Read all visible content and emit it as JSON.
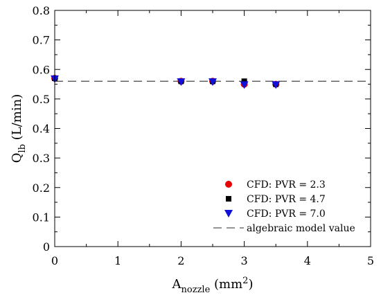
{
  "chart_data": {
    "type": "scatter",
    "xlim": [
      0,
      5
    ],
    "ylim": [
      0,
      0.8
    ],
    "x_ticks": [
      "0",
      "1",
      "2",
      "3",
      "4",
      "5"
    ],
    "y_ticks": [
      "0",
      "0.1",
      "0.2",
      "0.3",
      "0.4",
      "0.5",
      "0.6",
      "0.7",
      "0.8"
    ],
    "xlabel": {
      "main": "A",
      "sub": "nozzle",
      "unit_pre": " (mm",
      "unit_sup": "2",
      "unit_post": ")"
    },
    "ylabel": {
      "main": "Q",
      "sub": "lb",
      "unit": " (L/min)"
    },
    "legend_position": "bottom-right",
    "series": [
      {
        "name": "CFD: PVR = 2.3",
        "marker": "circle",
        "color": "#e60000",
        "points": [
          [
            0,
            0.57
          ],
          [
            2,
            0.56
          ],
          [
            2.5,
            0.56
          ],
          [
            3,
            0.55
          ],
          [
            3.5,
            0.55
          ]
        ]
      },
      {
        "name": "CFD: PVR = 4.7",
        "marker": "square",
        "color": "#000000",
        "points": [
          [
            0,
            0.57
          ],
          [
            2,
            0.56
          ],
          [
            2.5,
            0.56
          ],
          [
            3,
            0.56
          ],
          [
            3.5,
            0.55
          ]
        ]
      },
      {
        "name": "CFD: PVR = 7.0",
        "marker": "triangle-down",
        "color": "#1010d8",
        "points": [
          [
            0,
            0.568
          ],
          [
            2,
            0.558
          ],
          [
            2.5,
            0.558
          ],
          [
            3,
            0.548
          ],
          [
            3.5,
            0.548
          ]
        ]
      }
    ],
    "reference_line": {
      "name": "algebraic model value",
      "y": 0.56,
      "style": "dashed",
      "color": "#555555"
    }
  }
}
